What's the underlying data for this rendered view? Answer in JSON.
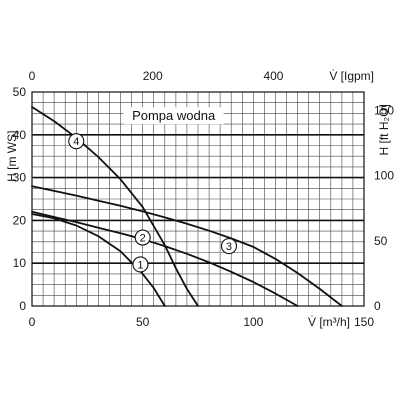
{
  "chart_data": {
    "type": "line",
    "title": "Pompa wodna",
    "x": {
      "label": "V̇ [m³/h]",
      "lim": [
        0,
        150
      ],
      "ticks": [
        0,
        50,
        100,
        150
      ],
      "tick_labels": [
        "0",
        "50",
        "100",
        "150"
      ],
      "secondary": {
        "label": "V̇ [Igpm]",
        "lim": [
          0,
          550
        ],
        "ticks": [
          0,
          200,
          400
        ],
        "tick_labels": [
          "0",
          "200",
          "400"
        ]
      }
    },
    "y": {
      "label": "H [m WS]",
      "lim": [
        0,
        50
      ],
      "ticks": [
        0,
        10,
        20,
        30,
        40,
        50
      ],
      "tick_labels": [
        "0",
        "10",
        "20",
        "30",
        "40",
        "50"
      ],
      "secondary": {
        "label": "H [ft H₂O]",
        "lim": [
          0,
          164
        ],
        "ticks": [
          0,
          50,
          100,
          150
        ],
        "tick_labels": [
          "0",
          "50",
          "100",
          "150"
        ]
      }
    },
    "grid": true,
    "series": [
      {
        "name": "1",
        "x": [
          0,
          10,
          20,
          30,
          40,
          50,
          55,
          60
        ],
        "y": [
          21.5,
          20.5,
          18.8,
          16.3,
          12.8,
          7.5,
          4.2,
          0
        ]
      },
      {
        "name": "2",
        "x": [
          0,
          10,
          20,
          30,
          40,
          50,
          60,
          70,
          80,
          90,
          100,
          110,
          120
        ],
        "y": [
          22,
          20.8,
          19.6,
          18.3,
          17,
          15.6,
          14,
          12.2,
          10.2,
          8,
          5.6,
          2.9,
          0
        ]
      },
      {
        "name": "3",
        "x": [
          0,
          10,
          20,
          30,
          40,
          50,
          60,
          70,
          80,
          90,
          100,
          110,
          120,
          130,
          140
        ],
        "y": [
          28,
          26.9,
          25.8,
          24.6,
          23.4,
          22.1,
          20.7,
          19.2,
          17.6,
          15.8,
          13.8,
          11,
          7.7,
          4,
          0
        ]
      },
      {
        "name": "4",
        "x": [
          0,
          10,
          20,
          30,
          40,
          50,
          60,
          65,
          70,
          75
        ],
        "y": [
          46.5,
          43.2,
          39.3,
          34.8,
          29.6,
          23.1,
          14.2,
          8.8,
          4,
          0
        ]
      }
    ],
    "curve_labels": [
      {
        "series": "4",
        "text": "4",
        "x": 20,
        "y": 38.5
      },
      {
        "series": "2",
        "text": "2",
        "x": 50,
        "y": 16
      },
      {
        "series": "3",
        "text": "3",
        "x": 89,
        "y": 14
      },
      {
        "series": "1",
        "text": "1",
        "x": 49,
        "y": 9.7
      }
    ]
  }
}
